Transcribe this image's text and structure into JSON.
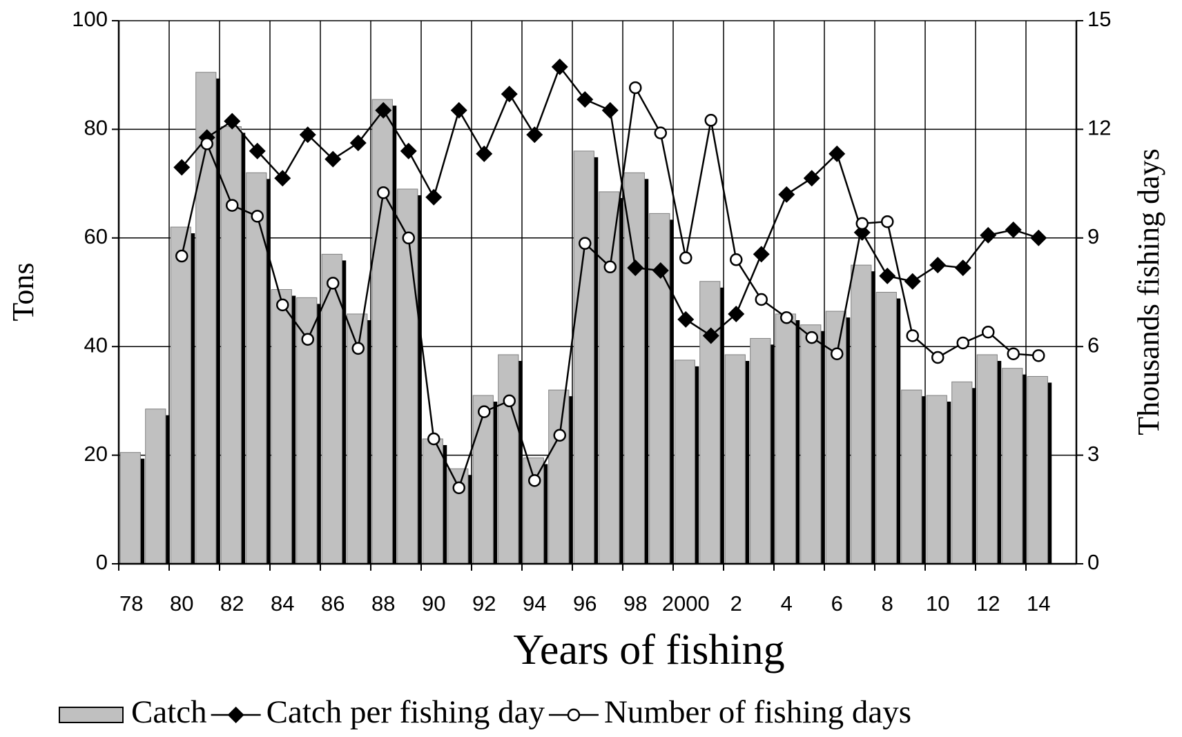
{
  "chart_data": {
    "type": "combo",
    "x_label": "Years of fishing",
    "y_label": "Tons",
    "y2_label": "Thousands fishing days",
    "categories": [
      "78",
      null,
      "80",
      null,
      "82",
      null,
      "84",
      null,
      "86",
      null,
      "88",
      null,
      "90",
      null,
      "92",
      null,
      "94",
      null,
      "96",
      null,
      "98",
      null,
      "2000",
      null,
      "2",
      null,
      "4",
      null,
      "6",
      null,
      "8",
      null,
      "10",
      null,
      "12",
      null,
      "14"
    ],
    "ylim": [
      0,
      100
    ],
    "yticks": [
      0,
      20,
      40,
      60,
      80,
      100
    ],
    "y2lim": [
      0,
      15
    ],
    "y2ticks": [
      0,
      3,
      6,
      9,
      12,
      15
    ],
    "grid": true,
    "legend": "bottom",
    "series": [
      {
        "name": "Catch",
        "type": "bar",
        "color": "#c0c0c0",
        "values": [
          20.5,
          28.5,
          62,
          90.5,
          80.5,
          72,
          50.5,
          49,
          57,
          46,
          85.5,
          69,
          23,
          17.5,
          31,
          38.5,
          19.5,
          32,
          76,
          68.5,
          72,
          64.5,
          37.5,
          52,
          38.5,
          41.5,
          46,
          44,
          46.5,
          55,
          50,
          32,
          31,
          33.5,
          38.5,
          36,
          34.5
        ]
      },
      {
        "name": "Catch per fishing day",
        "type": "line",
        "marker": "diamond",
        "color": "#000000",
        "values": [
          null,
          null,
          73,
          78.5,
          81.5,
          76,
          71,
          79,
          74.5,
          77.5,
          83.5,
          76,
          67.5,
          83.5,
          75.5,
          86.5,
          79,
          91.5,
          85.5,
          83.5,
          54.5,
          54,
          45,
          42,
          46,
          57,
          68,
          71,
          75.5,
          61,
          53,
          52,
          55,
          54.5,
          60.5,
          61.5,
          60
        ]
      },
      {
        "name": "Number of fishing days",
        "type": "line",
        "marker": "circle",
        "color": "#000000",
        "axis": "y2",
        "values": [
          null,
          null,
          8.5,
          11.6,
          9.9,
          9.6,
          7.15,
          6.2,
          7.75,
          5.95,
          10.25,
          9.0,
          3.45,
          2.1,
          4.2,
          4.5,
          2.3,
          3.55,
          8.85,
          8.2,
          13.15,
          11.9,
          8.45,
          12.25,
          8.4,
          7.3,
          6.8,
          6.25,
          5.8,
          9.4,
          9.45,
          6.3,
          5.7,
          6.1,
          6.4,
          5.8,
          5.75
        ]
      }
    ]
  }
}
